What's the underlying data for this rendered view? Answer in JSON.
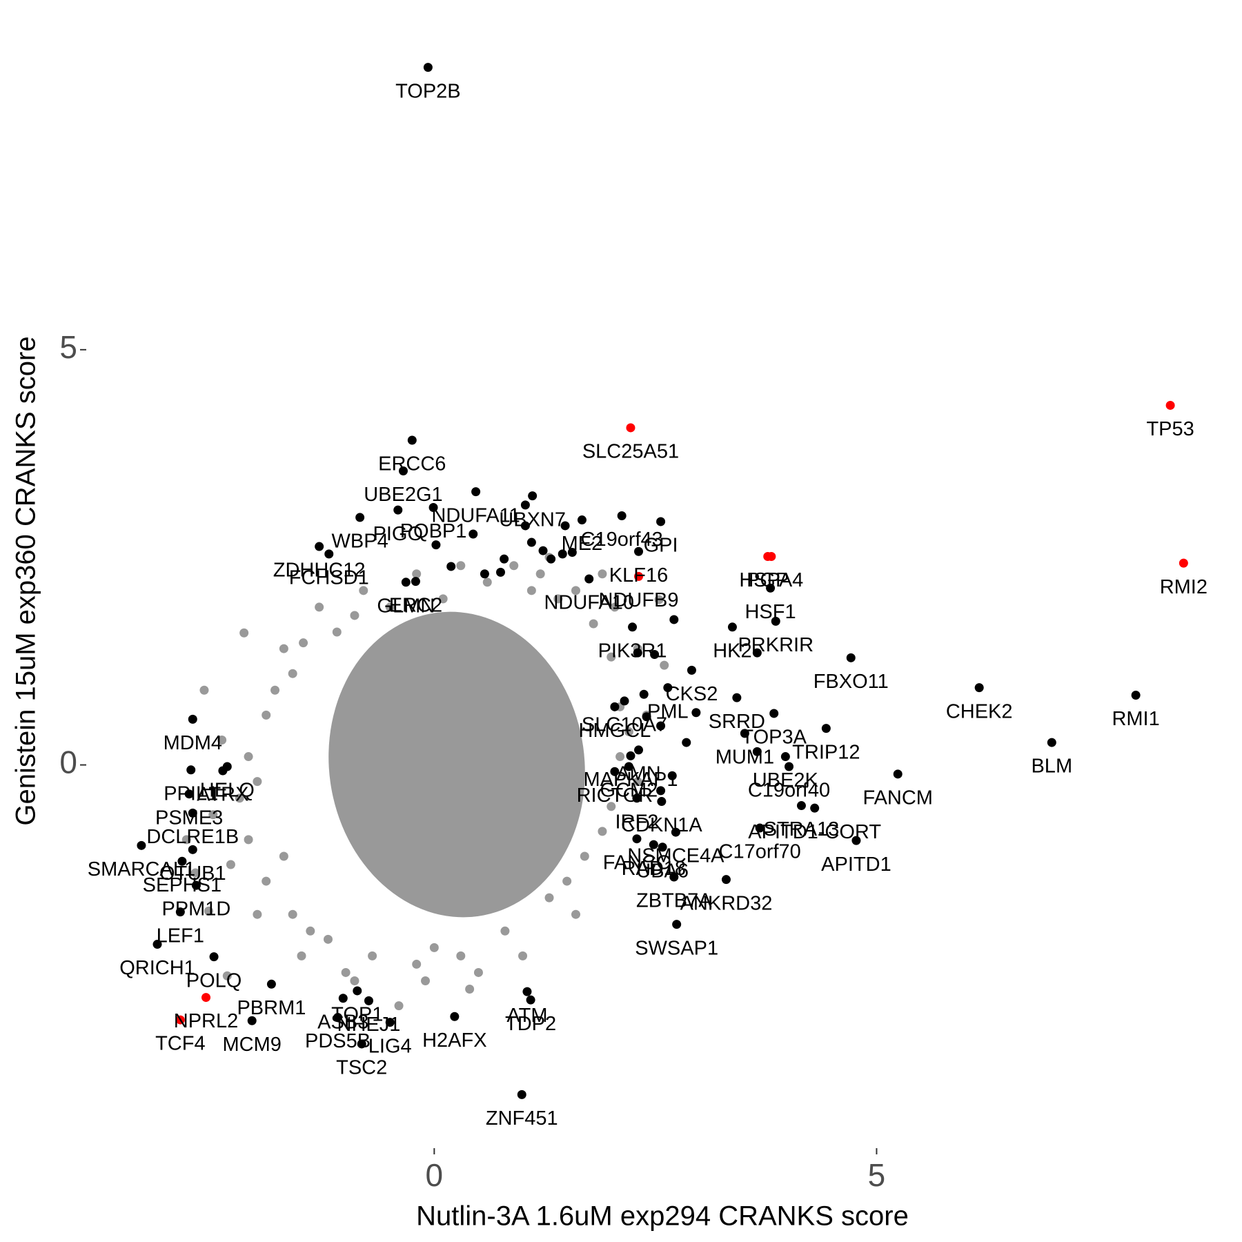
{
  "chart_data": {
    "type": "scatter",
    "xlabel": "Nutlin-3A 1.6uM exp294 CRANKS score",
    "ylabel": "Genistein 15uM exp360 CRANKS score",
    "xlim": [
      -3.91,
      9.06
    ],
    "ylim": [
      -4.59,
      9.02
    ],
    "xticks": [
      0,
      5
    ],
    "yticks": [
      0,
      5
    ],
    "grid": false,
    "series": [
      {
        "color": "#999999",
        "x": [
          -2.15,
          -2.55,
          -2.34,
          -1.48,
          2.54,
          2.04,
          1.6,
          1.2,
          0.6,
          0.1,
          -0.5,
          -1.1,
          -1.6,
          -1.9,
          -2.1,
          -2.2,
          -2.1,
          -1.9,
          -1.6,
          -1.2,
          -0.7,
          -0.2,
          0.3,
          0.8,
          1.3,
          1.7,
          2.0,
          2.1,
          2.1,
          2.0,
          1.8,
          -2.4,
          -2.5,
          -2.3,
          -1.7,
          -1.3,
          -0.8,
          0.3,
          0.9,
          1.4,
          2.3,
          2.4,
          2.3,
          1.6,
          1.0,
          -0.1,
          -0.9,
          -1.5,
          -2.0,
          -2.6,
          -0.4,
          0.4,
          1.9,
          2.6,
          -1.0,
          0.0,
          -1.8,
          -2.0,
          1.9,
          2.2,
          1.5,
          -1.4,
          -1.7,
          0.5,
          1.1,
          -0.2,
          -0.9,
          -2.8,
          -2.7,
          1.3
        ],
        "y": [
          1.59,
          -1.76,
          -2.54,
          1.47,
          1.99,
          1.9,
          2.1,
          2.3,
          2.2,
          2.0,
          1.9,
          1.6,
          1.1,
          0.6,
          0.1,
          -0.4,
          -0.9,
          -1.4,
          -1.8,
          -2.1,
          -2.3,
          -2.4,
          -2.3,
          -2.0,
          -1.6,
          -1.1,
          -0.5,
          0.1,
          0.7,
          1.3,
          1.7,
          0.3,
          -0.6,
          -1.2,
          1.4,
          1.9,
          2.1,
          2.4,
          2.4,
          2.0,
          1.4,
          0.6,
          -0.2,
          -1.8,
          -2.3,
          -2.6,
          -2.6,
          -2.3,
          -1.8,
          0.9,
          -2.9,
          -2.7,
          2.3,
          1.2,
          -2.5,
          -2.2,
          0.9,
          -0.2,
          -0.8,
          0.4,
          -1.4,
          -2.0,
          -1.1,
          -2.5,
          2.1,
          2.3,
          1.8,
          -0.9,
          -1.3,
          2.5
        ]
      },
      {
        "color": "#000000",
        "x": [
          -0.07,
          -0.25,
          -0.35,
          0.47,
          1.11,
          -0.41,
          -0.01,
          1.67,
          2.56,
          -0.84,
          2.12,
          -1.3,
          -0.32,
          3.8,
          3.37,
          -0.21,
          1.75,
          -1.19,
          3.86,
          2.91,
          4.71,
          2.24,
          3.42,
          2.64,
          3.84,
          6.16,
          7.93,
          2.04,
          2.15,
          3.51,
          4.43,
          6.98,
          -2.73,
          2.22,
          2.31,
          3.97,
          4.01,
          5.24,
          -2.75,
          -2.39,
          -2.34,
          -2.77,
          -2.73,
          2.04,
          2.2,
          4.15,
          4.3,
          4.77,
          -3.31,
          -2.73,
          3.68,
          2.57,
          2.29,
          2.73,
          -2.85,
          2.29,
          2.48,
          2.58,
          -2.69,
          2.71,
          3.3,
          -2.87,
          -2.49,
          -0.87,
          -0.74,
          2.74,
          -3.13,
          -1.84,
          1.05,
          1.09,
          -1.03,
          -2.06,
          -1.09,
          -0.5,
          0.23,
          -0.82,
          0.99,
          2.31,
          1.03,
          1.03,
          1.1,
          1.23,
          1.32,
          1.45,
          1.56,
          0.79,
          0.75,
          0.57,
          0.02,
          0.19,
          0.44,
          1.48,
          2.71,
          2.3,
          2.49,
          3.65,
          2.37,
          2.96,
          2.56,
          2.85,
          3.65,
          2.69,
          2.56,
          2.4
        ],
        "y": [
          8.4,
          3.91,
          3.54,
          3.29,
          3.24,
          3.07,
          3.1,
          2.95,
          2.93,
          2.98,
          3.0,
          2.63,
          2.2,
          2.13,
          1.66,
          2.21,
          2.24,
          2.54,
          1.73,
          1.14,
          1.29,
          1.66,
          0.81,
          0.93,
          0.62,
          0.93,
          0.84,
          0.7,
          0.77,
          0.38,
          0.44,
          0.27,
          0.55,
          0.11,
          0.18,
          0.1,
          -0.02,
          -0.11,
          -0.06,
          -0.07,
          -0.02,
          -0.35,
          -0.58,
          -0.08,
          -0.02,
          -0.49,
          -0.52,
          -0.91,
          -0.97,
          -1.02,
          -0.76,
          -0.44,
          -0.4,
          -0.81,
          -1.16,
          -0.89,
          -0.96,
          -0.99,
          -1.45,
          -1.35,
          -1.38,
          -1.77,
          -2.31,
          -2.72,
          -2.84,
          -1.92,
          -2.16,
          -2.64,
          -2.73,
          -2.83,
          -2.81,
          -3.08,
          -3.04,
          -3.1,
          -3.03,
          -3.36,
          -3.97,
          2.57,
          3.13,
          2.88,
          2.68,
          2.58,
          2.48,
          2.54,
          2.56,
          2.48,
          2.32,
          2.3,
          2.65,
          2.39,
          2.78,
          2.88,
          1.75,
          1.35,
          1.33,
          1.35,
          0.85,
          0.63,
          0.47,
          0.27,
          0.16,
          -0.13,
          -0.31,
          0.58
        ],
        "labels": [
          "TOP2B",
          "ERCC6",
          "UBE2G1",
          "NDUFA11",
          "UBXN7",
          "PIGO",
          "PQBP1",
          "ME2",
          "GPI",
          "WBP4",
          "C19orf43",
          "ZDHHC12",
          "GLMN",
          "HSF1",
          "HK2",
          "ERC2",
          "NDUFA10",
          "FCHSD1",
          "PRKRIR",
          "CKS2",
          "FBXO11",
          "PIK3R1",
          "SRRD",
          "PML",
          "TOP3A",
          "CHEK2",
          "RMI1",
          "HMGCL",
          "SLC10A7",
          "MUM1",
          "TRIP12",
          "BLM",
          "MDM4",
          "MAPKAP1",
          "AMN",
          "UBE2K",
          "C19orf40",
          "FANCM",
          "PPIL1",
          "ATRX",
          "HELQ",
          "PSME3",
          "DCLRE1B",
          "RICTOR",
          "GCM2",
          "STRA13",
          "APITD1-CORT",
          "APITD1",
          "SMARCAL1",
          "OTUB1",
          "C17orf70",
          "CDKN1A",
          "IRF2",
          "NSMCE4A",
          "SEPHS1",
          "FANCC",
          "RAD18",
          "UBA6",
          "PPM1D",
          "ZBTB7A",
          "ANKRD32",
          "LEF1",
          "POLQ",
          "TOP1",
          "NHEJ1",
          "SWSAP1",
          "QRICH1",
          "PBRM1",
          "ATM",
          "TDP2",
          "ASB3",
          "MCM9",
          "PDS5B",
          "LIG4",
          "H2AFX",
          "TSC2",
          "ZNF451",
          "KLF16",
          null,
          null,
          null,
          null,
          null,
          null,
          null,
          null,
          null,
          null,
          null,
          null,
          null,
          null,
          null,
          null,
          null,
          null,
          null,
          null,
          null,
          null,
          null,
          null,
          null,
          null
        ]
      },
      {
        "color": "#ff0000",
        "x": [
          8.32,
          8.47,
          2.22,
          3.77,
          3.81,
          2.31,
          -2.87,
          -2.58
        ],
        "y": [
          4.33,
          2.43,
          4.06,
          2.51,
          2.51,
          2.27,
          -3.07,
          -2.8
        ],
        "labels": [
          "TP53",
          "RMI2",
          "SLC25A51",
          "PGP",
          "HSPA4",
          "NDUFB9",
          "TCF4",
          "NPRL2"
        ]
      }
    ]
  }
}
